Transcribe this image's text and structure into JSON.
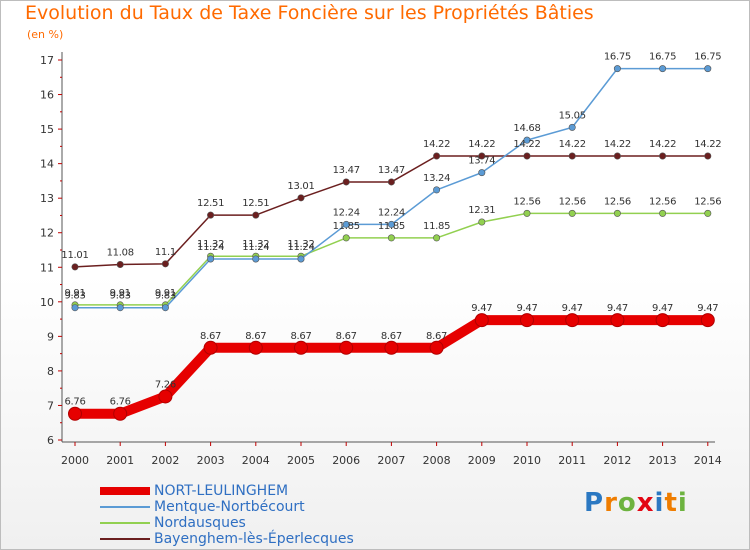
{
  "chart_data": {
    "type": "line",
    "title": "Evolution du Taux de Taxe Foncière sur les Propriétés Bâties",
    "ylabel": "(en %)",
    "xlabel": "",
    "categories": [
      "2000",
      "2001",
      "2002",
      "2003",
      "2004",
      "2005",
      "2006",
      "2007",
      "2008",
      "2009",
      "2010",
      "2011",
      "2012",
      "2013",
      "2014"
    ],
    "ylim": [
      6,
      17
    ],
    "yticks": [
      6,
      7,
      8,
      9,
      10,
      11,
      12,
      13,
      14,
      15,
      16,
      17
    ],
    "grid": false,
    "legend_position": "bottom-left",
    "series": [
      {
        "name": "NORT-LEULINGHEM",
        "color": "#e60000",
        "values": [
          6.76,
          6.76,
          7.26,
          8.67,
          8.67,
          8.67,
          8.67,
          8.67,
          8.67,
          9.47,
          9.47,
          9.47,
          9.47,
          9.47,
          9.47
        ],
        "labels": [
          "6.76",
          "6.76",
          "7.26",
          "8.67",
          "8.67",
          "8.67",
          "8.67",
          "8.67",
          "8.67",
          "9.47",
          "9.47",
          "9.47",
          "9.47",
          "9.47",
          "9.47"
        ]
      },
      {
        "name": "Mentque-Nortbécourt",
        "color": "#5b9bd5",
        "values": [
          9.83,
          9.83,
          9.83,
          11.24,
          11.24,
          11.24,
          12.24,
          12.24,
          13.24,
          13.74,
          14.68,
          15.05,
          16.75,
          16.75,
          16.75
        ],
        "labels": [
          "9.83",
          "9.83",
          "9.83",
          "11.24",
          "11.24",
          "11.24",
          "12.24",
          "12.24",
          "13.24",
          "13.74",
          "14.68",
          "15.05",
          "16.75",
          "16.75",
          "16.75"
        ]
      },
      {
        "name": "Nordausques",
        "color": "#92d050",
        "values": [
          9.91,
          9.91,
          9.91,
          11.32,
          11.32,
          11.32,
          11.85,
          11.85,
          11.85,
          12.31,
          12.56,
          12.56,
          12.56,
          12.56,
          12.56
        ],
        "labels": [
          "9.91",
          "9.91",
          "9.91",
          "11.32",
          "11.32",
          "11.32",
          "11.85",
          "11.85",
          "11.85",
          "12.31",
          "12.56",
          "12.56",
          "12.56",
          "12.56",
          "12.56"
        ]
      },
      {
        "name": "Bayenghem-lès-Éperlecques",
        "color": "#6b1f1f",
        "values": [
          11.01,
          11.08,
          11.1,
          12.51,
          12.51,
          13.01,
          13.47,
          13.47,
          14.22,
          14.22,
          14.22,
          14.22,
          14.22,
          14.22,
          14.22
        ],
        "labels": [
          "11.01",
          "11.08",
          "11.1",
          "12.51",
          "12.51",
          "13.01",
          "13.47",
          "13.47",
          "14.22",
          "14.22",
          "14.22",
          "14.22",
          "14.22",
          "14.22",
          "14.22"
        ]
      }
    ]
  },
  "branding": {
    "logo_letters": [
      "P",
      "r",
      "o",
      "x",
      "i",
      "t",
      "i"
    ],
    "logo_colors": [
      "#2b78c2",
      "#ef7d00",
      "#6db33f",
      "#e30613",
      "#2b78c2",
      "#ef7d00",
      "#6db33f"
    ]
  }
}
